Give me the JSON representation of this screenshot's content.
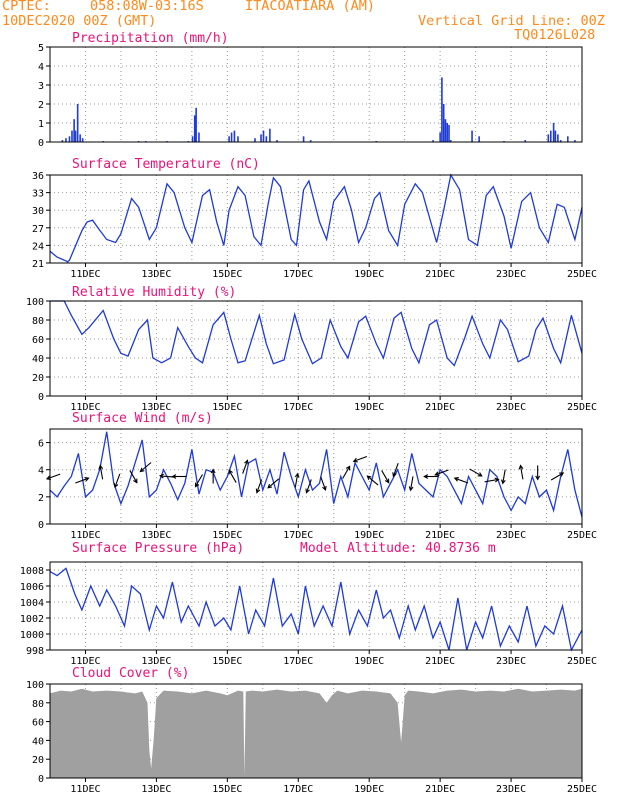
{
  "header": {
    "source": "CPTEC:",
    "coords": "058:08W-03:16S",
    "station": "ITACOATIARA (AM)",
    "init": "10DEC2020 00Z (GMT)",
    "grid_note": "Vertical Grid Line: 00Z",
    "code": "TQ0126L028"
  },
  "chart_data": [
    {
      "id": "precip",
      "type": "bar",
      "title": "Precipitation (mm/h)",
      "ylim": [
        0,
        5
      ],
      "yticks": [
        0,
        1,
        2,
        3,
        4,
        5
      ],
      "x_tick_labels": [],
      "color": "#1f3bd6",
      "x": [
        10.35,
        10.45,
        10.55,
        10.62,
        10.68,
        10.72,
        10.78,
        10.85,
        10.92,
        11.5,
        12.5,
        12.7,
        13.3,
        13.9,
        14.02,
        14.08,
        14.12,
        14.2,
        15.05,
        15.12,
        15.2,
        15.3,
        15.78,
        15.95,
        16.02,
        16.1,
        16.2,
        16.4,
        17.15,
        17.35,
        19.2,
        20.8,
        21.0,
        21.05,
        21.1,
        21.15,
        21.2,
        21.25,
        21.3,
        21.9,
        22.1,
        22.8,
        23.4,
        24.05,
        24.12,
        24.2,
        24.25,
        24.32,
        24.4,
        24.6,
        24.8
      ],
      "values": [
        0.1,
        0.2,
        0.3,
        0.6,
        1.2,
        0.6,
        2.0,
        0.4,
        0.2,
        0.05,
        0.05,
        0.05,
        0.05,
        0.05,
        0.3,
        1.4,
        1.8,
        0.5,
        0.3,
        0.5,
        0.6,
        0.3,
        0.2,
        0.4,
        0.6,
        0.3,
        0.7,
        0.1,
        0.3,
        0.1,
        0.05,
        0.1,
        0.5,
        3.4,
        2.0,
        1.2,
        1.0,
        0.9,
        0.1,
        0.6,
        0.3,
        0.05,
        0.1,
        0.4,
        0.6,
        1.0,
        0.6,
        0.4,
        0.1,
        0.3,
        0.1
      ]
    },
    {
      "id": "temp",
      "type": "line",
      "title": "Surface Temperature (nC)",
      "ylim": [
        21,
        36
      ],
      "yticks": [
        21,
        24,
        27,
        30,
        33,
        36
      ],
      "x_tick_labels": [
        "11DEC",
        "13DEC",
        "15DEC",
        "17DEC",
        "19DEC",
        "21DEC",
        "23DEC",
        "25DEC"
      ],
      "color": "#1f3bd6",
      "x": [
        10.0,
        10.2,
        10.4,
        10.5,
        10.55,
        10.9,
        11.05,
        11.2,
        11.35,
        11.6,
        11.85,
        12.0,
        12.3,
        12.5,
        12.8,
        13.0,
        13.3,
        13.5,
        13.8,
        14.0,
        14.3,
        14.5,
        14.7,
        14.9,
        15.05,
        15.3,
        15.5,
        15.75,
        15.95,
        16.15,
        16.3,
        16.5,
        16.8,
        16.95,
        17.15,
        17.3,
        17.6,
        17.8,
        18.0,
        18.3,
        18.5,
        18.7,
        18.9,
        19.15,
        19.3,
        19.55,
        19.8,
        20.0,
        20.3,
        20.5,
        20.9,
        21.1,
        21.3,
        21.55,
        21.8,
        22.05,
        22.3,
        22.5,
        22.8,
        23.0,
        23.3,
        23.55,
        23.8,
        24.05,
        24.3,
        24.5,
        24.8,
        25.0
      ],
      "values": [
        23.0,
        22.0,
        21.5,
        21.2,
        21.5,
        26.5,
        28.0,
        28.3,
        27.0,
        25.0,
        24.5,
        26.0,
        32.0,
        30.5,
        25.0,
        27.0,
        34.5,
        33.0,
        27.0,
        24.5,
        32.5,
        33.5,
        28.0,
        24.0,
        30.0,
        34.0,
        32.5,
        25.5,
        24.0,
        31.0,
        35.5,
        34.0,
        25.0,
        24.0,
        33.5,
        35.0,
        28.0,
        25.0,
        31.5,
        34.0,
        30.0,
        24.5,
        27.0,
        32.0,
        33.0,
        26.5,
        24.0,
        31.0,
        34.5,
        33.0,
        24.5,
        30.0,
        36.0,
        33.5,
        25.0,
        24.0,
        32.5,
        34.0,
        29.0,
        23.5,
        31.5,
        33.0,
        27.0,
        24.5,
        31.0,
        30.5,
        25.0,
        30.5
      ]
    },
    {
      "id": "rh",
      "type": "line",
      "title": "Relative Humidity (%)",
      "ylim": [
        0,
        100
      ],
      "yticks": [
        0,
        20,
        40,
        60,
        80,
        100
      ],
      "x_tick_labels": [
        "11DEC",
        "13DEC",
        "15DEC",
        "17DEC",
        "19DEC",
        "21DEC",
        "23DEC",
        "25DEC"
      ],
      "color": "#1f3bd6",
      "x": [
        10.0,
        10.4,
        10.6,
        10.9,
        11.1,
        11.5,
        11.8,
        12.0,
        12.2,
        12.5,
        12.75,
        12.9,
        13.15,
        13.4,
        13.6,
        13.9,
        14.1,
        14.3,
        14.6,
        14.9,
        15.1,
        15.3,
        15.5,
        15.9,
        16.1,
        16.3,
        16.6,
        16.9,
        17.1,
        17.4,
        17.65,
        17.9,
        18.2,
        18.4,
        18.7,
        18.9,
        19.2,
        19.4,
        19.7,
        19.9,
        20.2,
        20.4,
        20.7,
        20.9,
        21.2,
        21.4,
        21.7,
        21.9,
        22.2,
        22.4,
        22.7,
        22.9,
        23.2,
        23.5,
        23.7,
        23.9,
        24.2,
        24.4,
        24.7,
        25.0
      ],
      "values": [
        100,
        100,
        85,
        65,
        72,
        90,
        60,
        45,
        42,
        70,
        80,
        40,
        35,
        40,
        72,
        52,
        40,
        35,
        75,
        88,
        60,
        35,
        37,
        85,
        55,
        34,
        38,
        86,
        60,
        34,
        40,
        80,
        52,
        40,
        78,
        84,
        55,
        40,
        82,
        88,
        50,
        35,
        75,
        80,
        40,
        32,
        62,
        84,
        55,
        40,
        80,
        70,
        36,
        42,
        70,
        82,
        50,
        35,
        85,
        45
      ]
    },
    {
      "id": "wind",
      "type": "line",
      "title": "Surface Wind (m/s)",
      "ylim": [
        0,
        7
      ],
      "yticks": [
        0,
        2,
        4,
        6
      ],
      "x_tick_labels": [
        "11DEC",
        "13DEC",
        "15DEC",
        "17DEC",
        "19DEC",
        "21DEC",
        "23DEC",
        "25DEC"
      ],
      "color": "#1f3bd6",
      "x": [
        10.0,
        10.2,
        10.4,
        10.6,
        10.8,
        11.0,
        11.2,
        11.4,
        11.6,
        11.8,
        12.0,
        12.2,
        12.4,
        12.6,
        12.8,
        13.0,
        13.2,
        13.4,
        13.6,
        13.8,
        14.0,
        14.2,
        14.4,
        14.6,
        14.8,
        15.0,
        15.2,
        15.4,
        15.6,
        15.8,
        16.0,
        16.2,
        16.4,
        16.6,
        16.8,
        17.0,
        17.2,
        17.4,
        17.6,
        17.8,
        18.0,
        18.2,
        18.4,
        18.6,
        18.8,
        19.0,
        19.2,
        19.4,
        19.6,
        19.8,
        20.0,
        20.2,
        20.4,
        20.6,
        20.8,
        21.0,
        21.2,
        21.4,
        21.6,
        21.8,
        22.0,
        22.2,
        22.4,
        22.6,
        22.8,
        23.0,
        23.2,
        23.4,
        23.6,
        23.8,
        24.0,
        24.2,
        24.4,
        24.6,
        24.8,
        25.0
      ],
      "values": [
        2.5,
        2.0,
        2.8,
        3.5,
        5.2,
        2.0,
        2.5,
        4.0,
        6.8,
        3.0,
        1.5,
        2.8,
        4.5,
        6.2,
        2.0,
        2.5,
        4.0,
        3.0,
        1.8,
        3.0,
        5.5,
        2.2,
        4.0,
        3.8,
        2.5,
        3.5,
        5.0,
        2.0,
        4.5,
        4.8,
        2.5,
        4.0,
        2.2,
        5.3,
        3.5,
        2.0,
        4.0,
        2.5,
        3.0,
        5.5,
        1.5,
        3.5,
        2.0,
        4.5,
        3.5,
        2.5,
        4.5,
        2.0,
        3.0,
        4.0,
        2.5,
        5.2,
        3.0,
        2.5,
        2.0,
        4.0,
        3.5,
        2.5,
        1.5,
        3.5,
        2.5,
        1.5,
        4.0,
        3.5,
        2.0,
        1.0,
        2.0,
        1.5,
        3.5,
        2.0,
        2.5,
        1.0,
        3.5,
        5.5,
        2.5,
        0.5
      ]
    },
    {
      "id": "pressure",
      "type": "line",
      "title": "Surface Pressure (hPa)",
      "annotation": "Model Altitude: 40.8736 m",
      "ylim": [
        998,
        1009
      ],
      "yticks": [
        998,
        1000,
        1002,
        1004,
        1006,
        1008
      ],
      "x_tick_labels": [
        "11DEC",
        "13DEC",
        "15DEC",
        "17DEC",
        "19DEC",
        "21DEC",
        "23DEC",
        "25DEC"
      ],
      "color": "#1f3bd6",
      "x": [
        10.0,
        10.2,
        10.45,
        10.7,
        10.9,
        11.15,
        11.4,
        11.6,
        11.85,
        12.1,
        12.3,
        12.55,
        12.8,
        13.0,
        13.2,
        13.45,
        13.7,
        13.9,
        14.2,
        14.4,
        14.65,
        14.9,
        15.1,
        15.35,
        15.6,
        15.8,
        16.05,
        16.3,
        16.55,
        16.8,
        17.0,
        17.2,
        17.45,
        17.7,
        17.95,
        18.2,
        18.45,
        18.7,
        18.95,
        19.2,
        19.4,
        19.6,
        19.85,
        20.1,
        20.3,
        20.55,
        20.8,
        21.0,
        21.25,
        21.5,
        21.75,
        22.0,
        22.2,
        22.45,
        22.7,
        22.95,
        23.2,
        23.45,
        23.7,
        23.95,
        24.2,
        24.45,
        24.7,
        25.0
      ],
      "values": [
        1007.8,
        1007.3,
        1008.2,
        1005.0,
        1003.0,
        1006.0,
        1003.5,
        1005.5,
        1003.5,
        1001.0,
        1006.0,
        1005.0,
        1000.5,
        1003.5,
        1002.0,
        1006.5,
        1001.5,
        1003.5,
        1001.0,
        1004.0,
        1001.0,
        1002.0,
        1000.5,
        1006.0,
        1000.0,
        1003.0,
        1001.0,
        1007.0,
        1001.0,
        1002.5,
        1000.0,
        1006.0,
        1001.0,
        1003.5,
        1001.0,
        1006.5,
        1000.0,
        1003.0,
        1001.0,
        1005.5,
        1002.0,
        1003.0,
        999.5,
        1003.5,
        1000.5,
        1003.5,
        999.5,
        1001.5,
        998.0,
        1004.5,
        998.0,
        1001.5,
        999.5,
        1003.5,
        998.5,
        1001.0,
        999.0,
        1003.5,
        998.5,
        1001.0,
        1000.0,
        1003.5,
        998.0,
        1000.5
      ]
    },
    {
      "id": "cloud",
      "type": "area",
      "title": "Cloud Cover (%)",
      "ylim": [
        0,
        100
      ],
      "yticks": [
        0,
        20,
        40,
        60,
        80,
        100
      ],
      "x_tick_labels": [
        "11DEC",
        "13DEC",
        "15DEC",
        "17DEC",
        "19DEC",
        "21DEC",
        "23DEC",
        "25DEC"
      ],
      "color": "#a0a0a0",
      "x": [
        10.0,
        10.3,
        10.6,
        10.9,
        11.2,
        11.6,
        12.0,
        12.4,
        12.6,
        12.75,
        12.8,
        12.85,
        12.92,
        13.0,
        13.2,
        13.6,
        14.0,
        14.4,
        14.8,
        15.0,
        15.3,
        15.45,
        15.48,
        15.52,
        15.7,
        16.0,
        16.4,
        16.8,
        17.2,
        17.6,
        17.8,
        17.95,
        18.1,
        18.4,
        18.8,
        19.2,
        19.6,
        19.8,
        19.9,
        19.95,
        20.0,
        20.1,
        20.4,
        20.8,
        21.2,
        21.6,
        22.0,
        22.4,
        22.8,
        23.2,
        23.6,
        24.0,
        24.4,
        24.8,
        25.0
      ],
      "values": [
        90,
        93,
        92,
        95,
        92,
        93,
        92,
        90,
        92,
        80,
        30,
        10,
        40,
        85,
        93,
        92,
        90,
        93,
        90,
        88,
        93,
        92,
        2,
        92,
        93,
        92,
        94,
        92,
        93,
        90,
        80,
        88,
        93,
        90,
        93,
        92,
        90,
        80,
        38,
        62,
        88,
        93,
        92,
        90,
        93,
        94,
        92,
        93,
        92,
        95,
        92,
        93,
        94,
        93,
        95
      ]
    }
  ],
  "wind_vectors": {
    "x": [
      10.1,
      10.9,
      11.45,
      11.9,
      12.35,
      12.7,
      13.3,
      13.65,
      14.2,
      14.6,
      15.15,
      15.5,
      15.9,
      16.3,
      16.95,
      17.3,
      17.7,
      18.35,
      18.75,
      19.1,
      19.45,
      19.75,
      20.2,
      20.75,
      21.05,
      21.6,
      22.0,
      22.45,
      22.8,
      23.3,
      23.75,
      24.3
    ],
    "y": [
      3.5,
      3.2,
      3.8,
      3.2,
      3.5,
      4.2,
      3.5,
      3.5,
      3.2,
      3.5,
      3.5,
      4.2,
      2.8,
      3.0,
      3.2,
      2.8,
      3.0,
      3.8,
      4.8,
      3.2,
      3.5,
      4.0,
      3.0,
      3.5,
      3.8,
      3.2,
      3.8,
      3.2,
      3.5,
      3.8,
      3.8,
      3.5
    ],
    "dir": [
      200,
      20,
      100,
      250,
      300,
      220,
      175,
      180,
      240,
      90,
      120,
      70,
      250,
      220,
      80,
      250,
      290,
      60,
      200,
      140,
      300,
      250,
      260,
      180,
      200,
      160,
      330,
      10,
      260,
      100,
      270,
      30
    ]
  }
}
